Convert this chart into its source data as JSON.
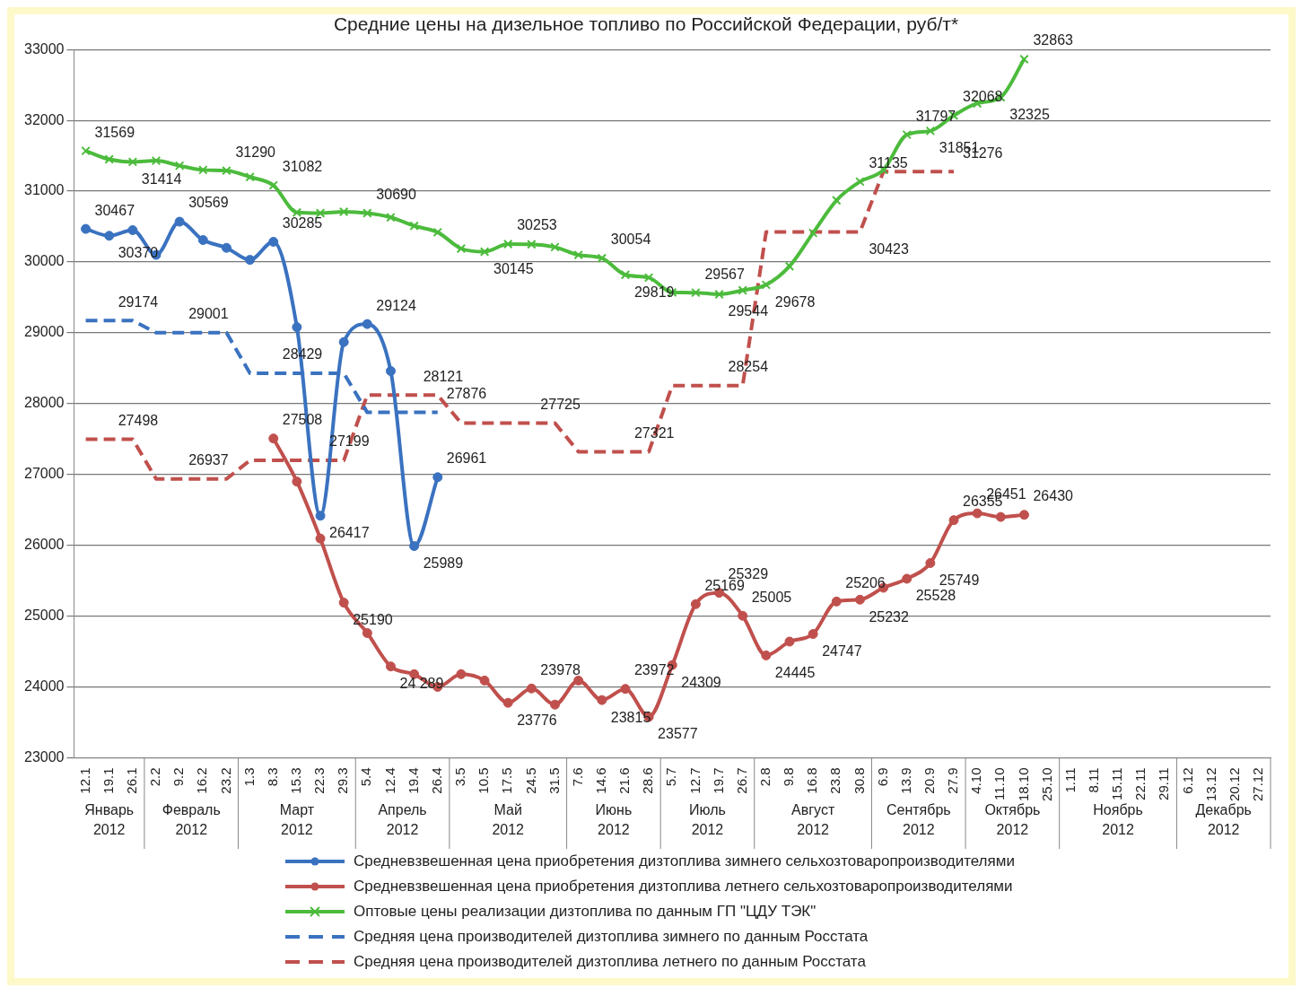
{
  "chart_data": {
    "type": "line",
    "title": "Средние цены на дизельное топливо по Российской Федерации, руб/т*",
    "categories": [
      "12.1",
      "19.1",
      "26.1",
      "2.2",
      "9.2",
      "16.2",
      "23.2",
      "1.3",
      "8.3",
      "15.3",
      "22.3",
      "29.3",
      "5.4",
      "12.4",
      "19.4",
      "26.4",
      "3.5",
      "10.5",
      "17.5",
      "24.5",
      "31.5",
      "7.6",
      "14.6",
      "21.6",
      "28.6",
      "5.7",
      "12.7",
      "19.7",
      "26.7",
      "2.8",
      "9.8",
      "16.8",
      "23.8",
      "30.8",
      "6.9",
      "13.9",
      "20.9",
      "27.9",
      "4.10",
      "11.10",
      "18.10",
      "25.10",
      "1.11",
      "8.11",
      "15.11",
      "22.11",
      "29.11",
      "6.12",
      "13.12",
      "20.12",
      "27.12"
    ],
    "ylim": [
      23000,
      33000
    ],
    "yticks": [
      23000,
      24000,
      25000,
      26000,
      27000,
      28000,
      29000,
      30000,
      31000,
      32000,
      33000
    ],
    "grid": "y",
    "legend": "bottom",
    "series": [
      {
        "name": "Средневзвешенная цена приобретения дизтоплива зимнего сельхозтоваропроизводителями",
        "color": "#3a72c0",
        "marker": "circle",
        "line_style": "solid",
        "values": [
          30467,
          30370,
          30450,
          30100,
          30569,
          30310,
          30200,
          30030,
          30285,
          29080,
          26417,
          28870,
          29124,
          28460,
          25989,
          26961,
          null,
          null,
          null,
          null,
          null,
          null,
          null,
          null,
          null,
          null,
          null,
          null,
          null,
          null,
          null,
          null,
          null,
          null,
          null,
          null,
          null,
          null,
          null,
          null,
          null,
          null,
          null,
          null,
          null,
          null,
          null,
          null,
          null,
          null,
          null
        ],
        "value_labels": [
          "30467",
          "30370",
          null,
          null,
          "30569",
          null,
          null,
          null,
          "30285",
          null,
          "26417",
          null,
          "29124",
          null,
          "25989",
          "26961",
          null,
          null,
          null,
          null,
          null,
          null,
          null,
          null,
          null,
          null,
          null,
          null,
          null,
          null,
          null,
          null,
          null,
          null,
          null,
          null,
          null,
          null,
          null,
          null,
          null,
          null,
          null,
          null,
          null,
          null,
          null,
          null,
          null,
          null,
          null
        ]
      },
      {
        "name": "Средневзвешенная цена приобретения дизтоплива летнего сельхозтоваропроизводителями",
        "color": "#c0504d",
        "marker": "circle",
        "line_style": "solid",
        "values": [
          null,
          null,
          null,
          null,
          null,
          null,
          null,
          null,
          27508,
          26900,
          26095,
          25190,
          24760,
          24289,
          24180,
          24000,
          24180,
          24090,
          23776,
          23978,
          23750,
          24090,
          23815,
          23972,
          23577,
          24309,
          25169,
          25329,
          25005,
          24445,
          24640,
          24747,
          25206,
          25232,
          25400,
          25528,
          25749,
          26355,
          26451,
          26400,
          26430,
          null,
          null,
          null,
          null,
          null,
          null,
          null,
          null,
          null,
          null
        ],
        "value_labels": [
          null,
          null,
          null,
          null,
          null,
          null,
          null,
          null,
          "27508",
          null,
          null,
          "25190",
          null,
          "24 289",
          null,
          null,
          null,
          null,
          "23776",
          "23978",
          null,
          null,
          "23815",
          "23972",
          "23577",
          "24309",
          "25169",
          "25329",
          "25005",
          "24445",
          null,
          "24747",
          "25206",
          "25232",
          null,
          "25528",
          "25749",
          "26355",
          "26451",
          null,
          "26430",
          null,
          null,
          null,
          null,
          null,
          null,
          null,
          null,
          null,
          null
        ]
      },
      {
        "name": "Оптовые цены реализации дизтоплива по данным ГП \"ЦДУ ТЭК\"",
        "color": "#4cbb3c",
        "marker": "cross",
        "line_style": "solid",
        "values": [
          31569,
          31450,
          31414,
          31430,
          31360,
          31300,
          31290,
          31200,
          31082,
          30700,
          30690,
          30710,
          30690,
          30630,
          30510,
          30420,
          30190,
          30145,
          30253,
          30250,
          30210,
          30100,
          30054,
          29819,
          29780,
          29570,
          29567,
          29544,
          29600,
          29678,
          29940,
          30410,
          30870,
          31135,
          31300,
          31797,
          31851,
          32068,
          32240,
          32325,
          32863,
          null,
          null,
          null,
          null,
          null,
          null,
          null,
          null,
          null,
          null
        ],
        "value_labels": [
          "31569",
          null,
          "31414",
          null,
          null,
          null,
          "31290",
          null,
          "31082",
          null,
          null,
          null,
          "30690",
          null,
          null,
          null,
          null,
          "30145",
          "30253",
          null,
          null,
          null,
          "30054",
          "29819",
          null,
          null,
          "29567",
          "29544",
          null,
          "29678",
          null,
          null,
          null,
          "31135",
          null,
          "31797",
          "31851",
          "32068",
          null,
          "32325",
          "32863",
          null,
          null,
          null,
          null,
          null,
          null,
          null,
          null,
          null,
          null
        ]
      },
      {
        "name": "Средняя цена производителей дизтоплива зимнего по данным Росстата",
        "color": "#3a72c0",
        "marker": "none",
        "line_style": "dashed",
        "values": [
          29174,
          29174,
          29174,
          29001,
          29001,
          29001,
          29001,
          28429,
          28429,
          28429,
          28429,
          28429,
          27876,
          27876,
          27876,
          27876,
          null,
          null,
          null,
          null,
          null,
          null,
          null,
          null,
          null,
          null,
          null,
          null,
          null,
          null,
          null,
          null,
          null,
          null,
          null,
          null,
          null,
          null,
          null,
          null,
          null,
          null,
          null,
          null,
          null,
          null,
          null,
          null,
          null,
          null,
          null
        ],
        "value_labels": [
          null,
          "29174",
          null,
          null,
          "29001",
          null,
          null,
          null,
          "28429",
          null,
          null,
          null,
          null,
          null,
          null,
          "27876",
          null,
          null,
          null,
          null,
          null,
          null,
          null,
          null,
          null,
          null,
          null,
          null,
          null,
          null,
          null,
          null,
          null,
          null,
          null,
          null,
          null,
          null,
          null,
          null,
          null,
          null,
          null,
          null,
          null,
          null,
          null,
          null,
          null,
          null,
          null
        ]
      },
      {
        "name": "Средняя цена производителей дизтоплива летнего по данным Росстата",
        "color": "#c0504d",
        "marker": "none",
        "line_style": "dashed",
        "values": [
          27498,
          27498,
          27498,
          26937,
          26937,
          26937,
          26937,
          27199,
          27199,
          27199,
          27199,
          27199,
          28121,
          28121,
          28121,
          28121,
          27725,
          27725,
          27725,
          27725,
          27725,
          27321,
          27321,
          27321,
          27321,
          28254,
          28254,
          28254,
          28254,
          30423,
          30423,
          30423,
          30423,
          30423,
          31276,
          31276,
          31276,
          31276,
          null,
          null,
          null,
          null,
          null,
          null,
          null,
          null,
          null,
          null,
          null,
          null,
          null
        ],
        "value_labels": [
          null,
          "27498",
          null,
          null,
          "26937",
          null,
          null,
          null,
          null,
          null,
          "27199",
          null,
          null,
          null,
          "28121",
          null,
          null,
          null,
          null,
          "27725",
          null,
          null,
          null,
          "27321",
          null,
          null,
          null,
          "28254",
          null,
          null,
          null,
          null,
          null,
          "30423",
          null,
          null,
          null,
          "31276",
          null,
          null,
          null,
          null,
          null,
          null,
          null,
          null,
          null,
          null,
          null,
          null,
          null
        ]
      }
    ],
    "annotations": [
      "Январь 2012",
      "Февраль 2012",
      "Март 2012",
      "Апрель 2012",
      "Май 2012",
      "Июнь 2012",
      "Июль 2012",
      "Август 2012",
      "Сентябрь 2012",
      "Октябрь 2012",
      "Ноябрь 2012",
      "Декабрь 2012"
    ]
  }
}
